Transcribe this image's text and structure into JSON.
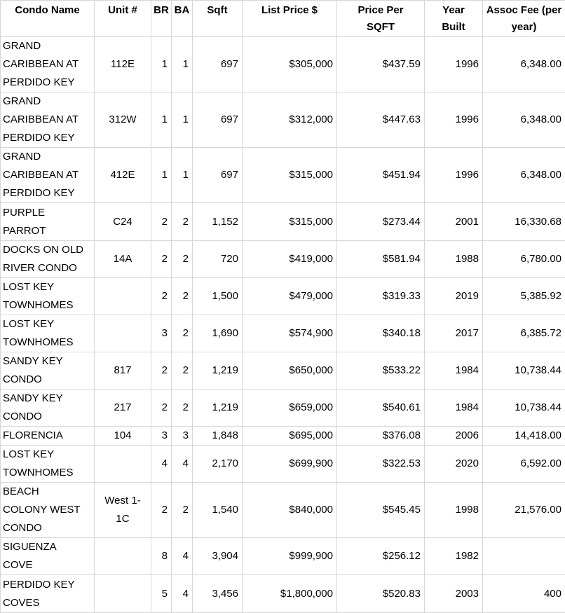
{
  "colors": {
    "grid_line": "#d6d6d6",
    "text": "#000000",
    "background": "#ffffff"
  },
  "table": {
    "columns": [
      {
        "key": "condo_name",
        "label": "Condo Name",
        "align": "left"
      },
      {
        "key": "unit",
        "label": "Unit #",
        "align": "center"
      },
      {
        "key": "br",
        "label": "BR",
        "align": "right"
      },
      {
        "key": "ba",
        "label": "BA",
        "align": "right"
      },
      {
        "key": "sqft",
        "label": "Sqft",
        "align": "right"
      },
      {
        "key": "list_price",
        "label": "List Price $",
        "align": "right"
      },
      {
        "key": "price_per_sqft",
        "label": "Price Per SQFT",
        "align": "right"
      },
      {
        "key": "year_built",
        "label": "Year Built",
        "align": "right"
      },
      {
        "key": "assoc_fee",
        "label": "Assoc Fee (per year)",
        "align": "right"
      }
    ],
    "rows": [
      [
        "GRAND CARIBBEAN AT PERDIDO KEY",
        "112E",
        "1",
        "1",
        "697",
        "$305,000",
        "$437.59",
        "1996",
        "6,348.00"
      ],
      [
        "GRAND CARIBBEAN AT PERDIDO KEY",
        "312W",
        "1",
        "1",
        "697",
        "$312,000",
        "$447.63",
        "1996",
        "6,348.00"
      ],
      [
        "GRAND CARIBBEAN AT PERDIDO KEY",
        "412E",
        "1",
        "1",
        "697",
        "$315,000",
        "$451.94",
        "1996",
        "6,348.00"
      ],
      [
        "PURPLE PARROT",
        "C24",
        "2",
        "2",
        "1,152",
        "$315,000",
        "$273.44",
        "2001",
        "16,330.68"
      ],
      [
        "DOCKS ON OLD RIVER CONDO",
        "14A",
        "2",
        "2",
        "720",
        "$419,000",
        "$581.94",
        "1988",
        "6,780.00"
      ],
      [
        "LOST KEY TOWNHOMES",
        "",
        "2",
        "2",
        "1,500",
        "$479,000",
        "$319.33",
        "2019",
        "5,385.92"
      ],
      [
        "LOST KEY TOWNHOMES",
        "",
        "3",
        "2",
        "1,690",
        "$574,900",
        "$340.18",
        "2017",
        "6,385.72"
      ],
      [
        "SANDY KEY CONDO",
        "817",
        "2",
        "2",
        "1,219",
        "$650,000",
        "$533.22",
        "1984",
        "10,738.44"
      ],
      [
        "SANDY KEY CONDO",
        "217",
        "2",
        "2",
        "1,219",
        "$659,000",
        "$540.61",
        "1984",
        "10,738.44"
      ],
      [
        "FLORENCIA",
        "104",
        "3",
        "3",
        "1,848",
        "$695,000",
        "$376.08",
        "2006",
        "14,418.00"
      ],
      [
        "LOST KEY TOWNHOMES",
        "",
        "4",
        "4",
        "2,170",
        "$699,900",
        "$322.53",
        "2020",
        "6,592.00"
      ],
      [
        "BEACH COLONY WEST CONDO",
        "West 1-1C",
        "2",
        "2",
        "1,540",
        "$840,000",
        "$545.45",
        "1998",
        "21,576.00"
      ],
      [
        "SIGUENZA COVE",
        "",
        "8",
        "4",
        "3,904",
        "$999,900",
        "$256.12",
        "1982",
        ""
      ],
      [
        "PERDIDO KEY COVES",
        "",
        "5",
        "4",
        "3,456",
        "$1,800,000",
        "$520.83",
        "2003",
        "400"
      ]
    ]
  }
}
